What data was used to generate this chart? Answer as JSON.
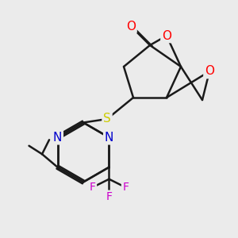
{
  "bg_color": "#ebebeb",
  "bond_color": "#1a1a1a",
  "bond_lw": 1.8,
  "atom_colors": {
    "O": "#ff0000",
    "N": "#0000cc",
    "S": "#cccc00",
    "F": "#cc00cc",
    "C": "#1a1a1a"
  },
  "font_size": 11,
  "font_size_small": 10
}
